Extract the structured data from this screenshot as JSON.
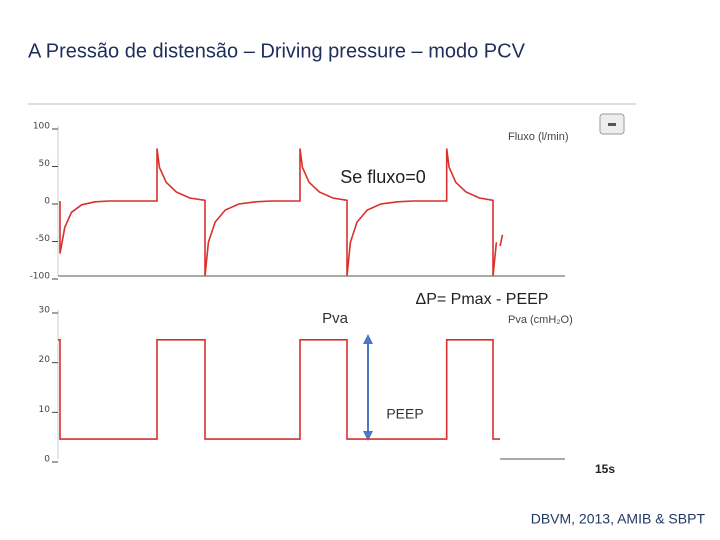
{
  "title": "A Pressão de distensão – Driving pressure – modo PCV",
  "footer": "DBVM, 2013, AMIB & SBPT",
  "chart_data": [
    {
      "type": "line",
      "y_label": "Fluxo (l/min)",
      "annotations": [
        "Se fluxo=0"
      ],
      "xlim": [
        0,
        15
      ],
      "ylim": [
        -100,
        100
      ],
      "yticks": [
        -100,
        -50,
        0,
        50,
        100
      ],
      "x": [
        0.06,
        0.06,
        0.2,
        0.4,
        0.7,
        1.1,
        1.5,
        2.93,
        2.93,
        3.0,
        3.2,
        3.5,
        3.9,
        4.35,
        4.35,
        4.45,
        4.65,
        4.95,
        5.35,
        5.85,
        6.3,
        7.16,
        7.16,
        7.23,
        7.43,
        7.73,
        8.13,
        8.55,
        8.55,
        8.65,
        8.85,
        9.15,
        9.55,
        10.05,
        10.5,
        11.5,
        11.5,
        11.57,
        11.77,
        12.07,
        12.47,
        12.87,
        12.87,
        12.97,
        null,
        13.08,
        13.15
      ],
      "series": [
        {
          "color": "#d9302c",
          "values": [
            0,
            -70,
            -35,
            -15,
            -5,
            -1,
            0,
            0,
            70,
            45,
            25,
            12,
            4,
            1,
            -100,
            -55,
            -28,
            -12,
            -4,
            -1,
            0,
            0,
            70,
            45,
            25,
            12,
            4,
            1,
            -100,
            -55,
            -28,
            -12,
            -4,
            -1,
            0,
            0,
            70,
            45,
            25,
            12,
            4,
            1,
            -100,
            -55,
            null,
            -60,
            -45
          ]
        }
      ]
    },
    {
      "type": "line",
      "y_label": "Pva (cmH₂O)",
      "x_label": "15s",
      "annotations": [
        "Pva",
        "ΔP= Pmax - PEEP",
        "PEEP"
      ],
      "xlim": [
        0,
        15
      ],
      "ylim": [
        0,
        30
      ],
      "yticks": [
        0,
        10,
        20,
        30
      ],
      "x": [
        0,
        0.06,
        0.06,
        2.93,
        2.93,
        4.35,
        4.35,
        7.16,
        7.16,
        8.55,
        8.55,
        11.5,
        11.5,
        12.87,
        12.87,
        13.08
      ],
      "series": [
        {
          "color": "#d9302c",
          "values": [
            24,
            24,
            4,
            4,
            24,
            24,
            4,
            4,
            24,
            24,
            4,
            4,
            24,
            24,
            4,
            4
          ]
        }
      ]
    }
  ]
}
